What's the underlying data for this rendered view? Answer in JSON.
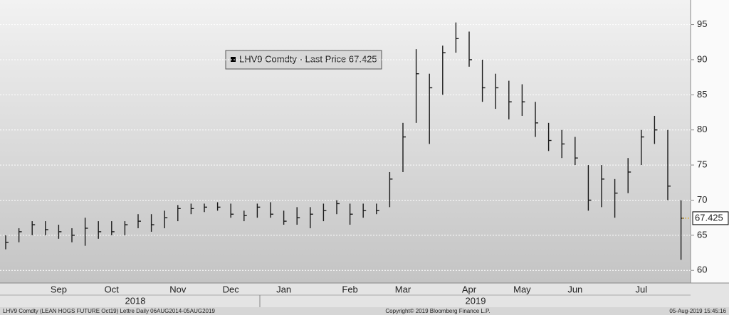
{
  "chart_data": {
    "type": "ohlc",
    "legend": "LHV9 Comdty - Last Price 67.425",
    "color": "#1a1a1a",
    "categories": [
      null,
      null,
      null,
      null,
      "Sep",
      null,
      null,
      null,
      "Oct",
      null,
      null,
      null,
      null,
      "Nov",
      null,
      null,
      null,
      "Dec",
      null,
      null,
      null,
      "Jan",
      null,
      null,
      null,
      null,
      "Feb",
      null,
      null,
      null,
      "Mar",
      null,
      null,
      null,
      null,
      "Apr",
      null,
      null,
      null,
      "May",
      null,
      null,
      null,
      "Jun",
      null,
      null,
      null,
      null,
      "Jul",
      null,
      null,
      null
    ],
    "high": [
      65,
      66,
      67,
      67,
      66.5,
      66,
      67.5,
      67,
      67,
      67,
      68,
      68,
      68.5,
      69.3,
      69.5,
      69.5,
      69.7,
      69.5,
      68.5,
      69.5,
      69.7,
      68.5,
      69,
      69,
      69.5,
      70,
      69.5,
      69.5,
      69.5,
      74,
      81,
      91.5,
      88,
      92,
      95.3,
      94,
      90,
      88,
      87,
      86.5,
      84,
      81,
      80,
      79,
      75,
      75,
      73,
      76,
      80,
      82,
      80,
      70
    ],
    "low": [
      63,
      64,
      65,
      65,
      64.5,
      64,
      63.5,
      64.5,
      65,
      65,
      66,
      65.5,
      66,
      67,
      68,
      68.3,
      68.5,
      67.5,
      67,
      67.5,
      67.5,
      66.5,
      66.5,
      66,
      67,
      68,
      66.5,
      67.5,
      68,
      69,
      74,
      81,
      78,
      85,
      91,
      89,
      84,
      83,
      81.5,
      82,
      79,
      77,
      76,
      75,
      68.5,
      69,
      67.5,
      71,
      75,
      78,
      70,
      61.5
    ],
    "close": [
      64,
      65.5,
      66.5,
      65.8,
      65.5,
      65,
      66,
      65.5,
      65.5,
      66.5,
      67,
      66.5,
      67.5,
      68.8,
      68.8,
      69,
      69,
      68,
      67.8,
      69,
      68,
      67,
      67.5,
      68,
      68.5,
      69.5,
      68,
      68.5,
      68.5,
      73,
      79,
      88,
      86,
      91,
      93,
      90,
      86,
      86,
      84,
      84,
      81,
      78.5,
      78,
      76,
      70,
      73,
      71,
      74,
      79,
      80,
      72,
      67.425
    ],
    "year_labels": [
      "2018",
      "2019"
    ],
    "ylim": [
      58.2,
      98.5
    ],
    "yticks": [
      60,
      65,
      70,
      75,
      80,
      85,
      90,
      95
    ],
    "grid": true
  },
  "footer": {
    "left": "LHV9 Comdty (LEAN HOGS FUTURE Oct19) Lettre Daily 06AUG2014-05AUG2019",
    "center": "Copyright© 2019 Bloomberg Finance L.P.",
    "right": "05-Aug-2019 15:45:16"
  }
}
